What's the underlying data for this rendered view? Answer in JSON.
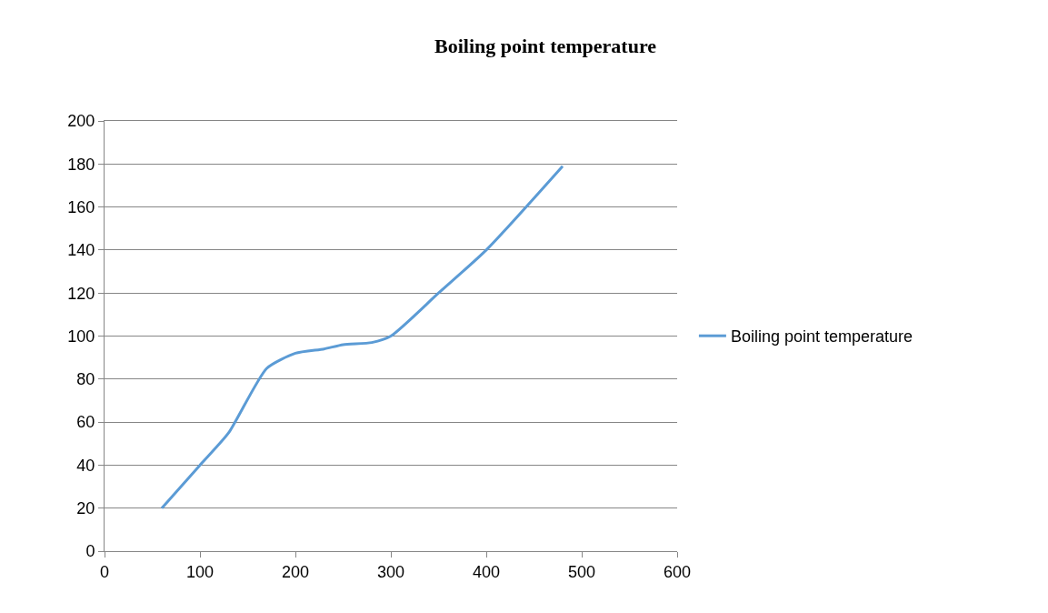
{
  "chart_data": {
    "type": "line",
    "title": "Boiling point temperature",
    "series": [
      {
        "name": "Boiling point temperature",
        "color": "#5b9bd5",
        "x": [
          60,
          100,
          130,
          170,
          200,
          230,
          250,
          280,
          300,
          350,
          400,
          480
        ],
        "values": [
          20,
          40,
          55,
          85,
          92,
          94,
          96,
          97,
          100,
          120,
          140,
          179
        ]
      }
    ],
    "xlim": [
      0,
      600
    ],
    "xticks": [
      0,
      100,
      200,
      300,
      400,
      500,
      600
    ],
    "ylim": [
      0,
      200
    ],
    "yticks": [
      0,
      20,
      40,
      60,
      80,
      100,
      120,
      140,
      160,
      180,
      200
    ],
    "grid": "y",
    "legend": "right",
    "marker": "none",
    "line_style": "solid"
  }
}
